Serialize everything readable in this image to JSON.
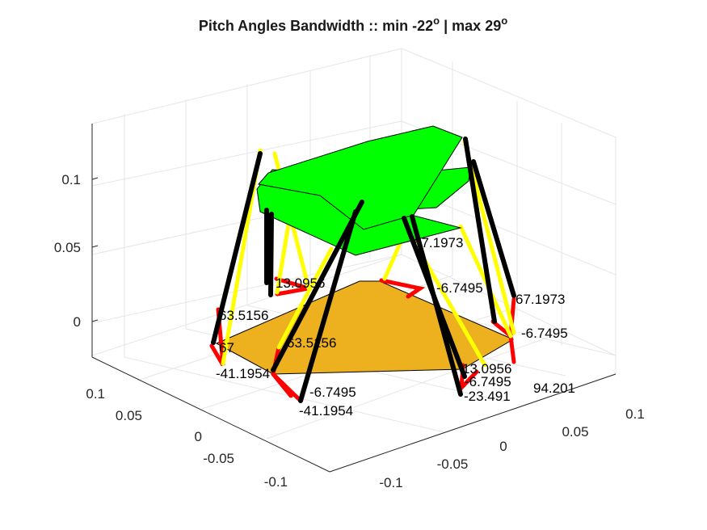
{
  "chart_data": {
    "type": "3d-mechanism",
    "title": "Pitch Angles Bandwidth :: min -22",
    "title_deg1": "o",
    "title_mid": " | max 29",
    "title_deg2": "o",
    "z_ticks": [
      "0",
      "0.05",
      "0.1"
    ],
    "x_ticks": [
      "-0.1",
      "-0.05",
      "0",
      "0.05",
      "0.1"
    ],
    "y_ticks": [
      "-0.1",
      "-0.05",
      "0",
      "0.05",
      "0.1"
    ],
    "annotations": [
      "13.0956",
      "67.1973",
      "-6.7495",
      "63.5156",
      "67",
      "-41.1954",
      "63.5156",
      "-6.7495",
      "-41.1954",
      "67.1973",
      "-6.7495",
      "13.0956",
      "-6.7495",
      "94.201",
      "-23.491",
      "67.1973",
      "-6.7495",
      "13.0956"
    ],
    "colors": {
      "platform": "#00ff00",
      "base": "#edb120",
      "leg_black": "#000000",
      "leg_yellow": "#ffff00",
      "crank_red": "#ff0000"
    }
  }
}
